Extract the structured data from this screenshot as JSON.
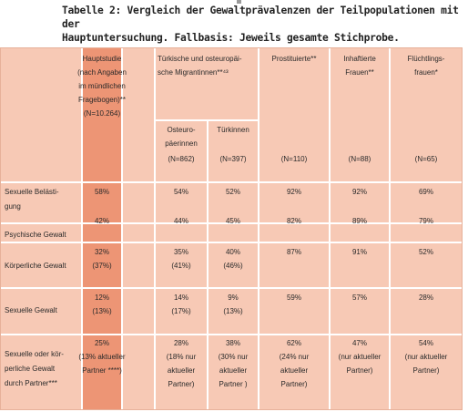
{
  "caption": {
    "line1": "Tabelle 2: Vergleich der Gewaltprävalenzen der Teilpopulationen mit der",
    "line2": "Hauptuntersuchung. Fallbasis: Jeweils gesamte Stichprobe."
  },
  "colors": {
    "table_bg": "#f7c9b5",
    "highlight": "#ed9575",
    "grid": "#ffffff"
  },
  "headers": {
    "haupt": [
      "Hauptstudie",
      "(nach Angaben",
      "im mündlichen",
      "Fragebogen)**",
      "(N=10.264)"
    ],
    "migr": [
      "Türkische und osteuropäi-",
      "sche Migrantinnen**⁴³"
    ],
    "osteuro": [
      "Osteuro-",
      "päerinnen",
      "(N=862)"
    ],
    "turk": [
      "Türkinnen",
      "",
      "(N=397)"
    ],
    "prost": [
      "Prostituierte**",
      "(N=110)"
    ],
    "inhaft": [
      "Inhaftierte",
      "Frauen**",
      "(N=88)"
    ],
    "fluecht": [
      "Flüchtlings-",
      "frauen*",
      "(N=65)"
    ]
  },
  "rows": [
    {
      "label": [
        "Sexuelle Belästi-",
        "gung"
      ],
      "haupt": [
        "58%"
      ],
      "osteuro": [
        "54%"
      ],
      "turk": [
        "52%"
      ],
      "prost": [
        "92%"
      ],
      "inhaft": [
        "92%"
      ],
      "fluecht": [
        "69%"
      ]
    },
    {
      "label": [
        "Psychische Gewalt"
      ],
      "haupt": [
        "42%"
      ],
      "osteuro": [
        "44%"
      ],
      "turk": [
        "45%"
      ],
      "prost": [
        "82%"
      ],
      "inhaft": [
        "89%"
      ],
      "fluecht": [
        "79%"
      ]
    },
    {
      "label": [
        "Körperliche Gewalt"
      ],
      "haupt": [
        "32%",
        "(37%)"
      ],
      "osteuro": [
        "35%",
        "(41%)"
      ],
      "turk": [
        "40%",
        "(46%)"
      ],
      "prost": [
        "87%"
      ],
      "inhaft": [
        "91%"
      ],
      "fluecht": [
        "52%"
      ]
    },
    {
      "label": [
        "Sexuelle Gewalt"
      ],
      "haupt": [
        "12%",
        "(13%)"
      ],
      "osteuro": [
        "14%",
        "(17%)"
      ],
      "turk": [
        "9%",
        "(13%)"
      ],
      "prost": [
        "59%"
      ],
      "inhaft": [
        "57%"
      ],
      "fluecht": [
        "28%"
      ]
    },
    {
      "label": [
        "Sexuelle oder kör-",
        "perliche Gewalt",
        "durch Partner***"
      ],
      "haupt": [
        "25%",
        "(13% aktueller",
        "Partner ****)"
      ],
      "osteuro": [
        "28%",
        "(18% nur",
        "aktueller",
        "Partner)"
      ],
      "turk": [
        "38%",
        "(30% nur",
        "aktueller",
        "Partner )"
      ],
      "prost": [
        "62%",
        "(24% nur",
        "aktueller",
        "Partner)"
      ],
      "inhaft": [
        "47%",
        "(nur aktueller",
        "Partner)"
      ],
      "fluecht": [
        "54%",
        "(nur aktueller",
        "Partner)"
      ]
    }
  ]
}
